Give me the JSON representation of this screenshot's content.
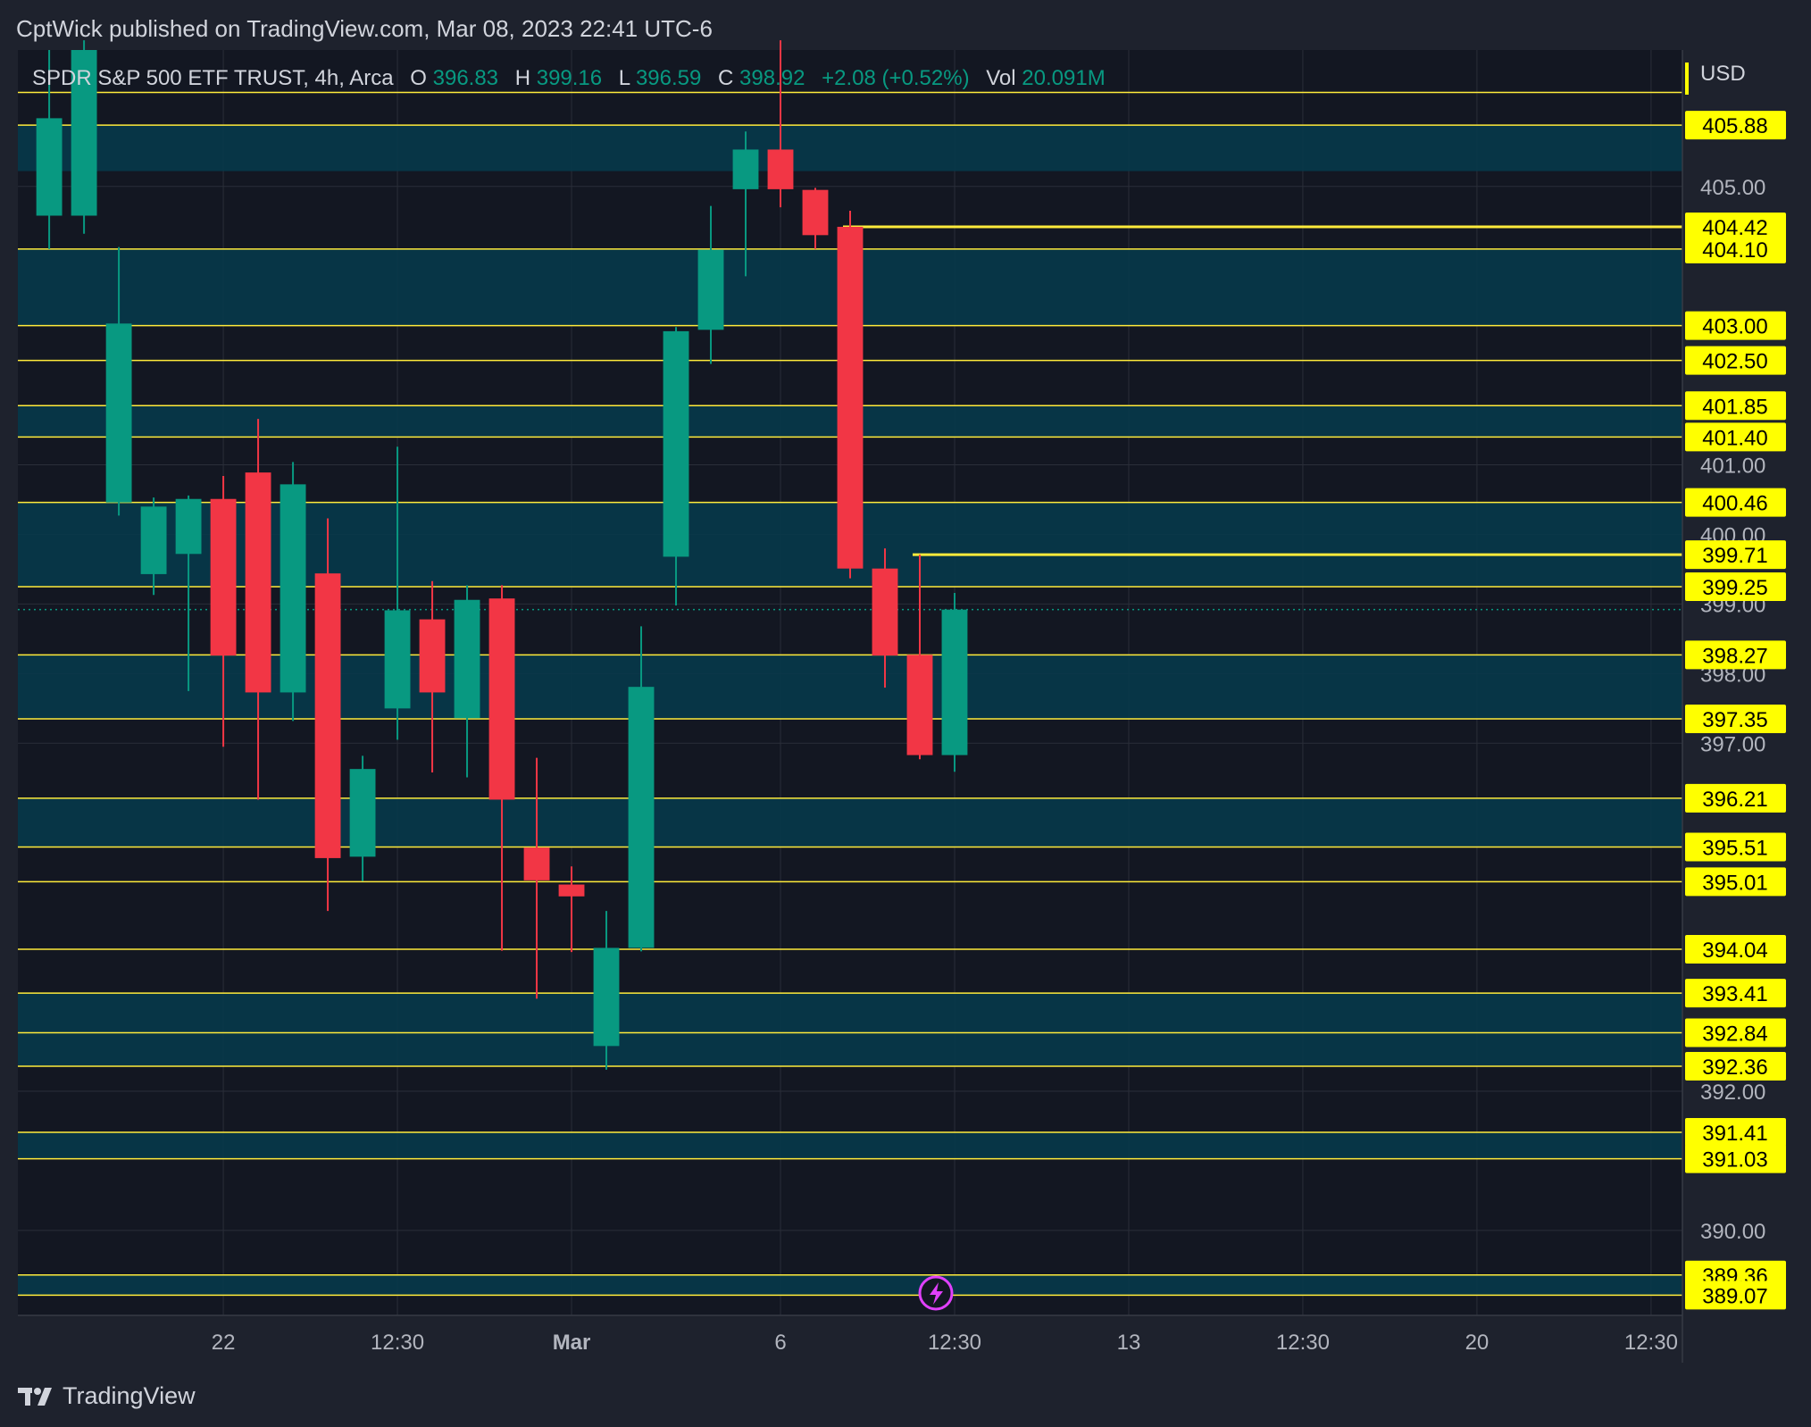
{
  "header": {
    "text": "CptWick published on TradingView.com, Mar 08, 2023 22:41 UTC-6"
  },
  "legend": {
    "symbol": "SPDR S&P 500 ETF TRUST, 4h, Arca",
    "o_label": "O",
    "o_value": "396.83",
    "h_label": "H",
    "h_value": "399.16",
    "l_label": "L",
    "l_value": "396.59",
    "c_label": "C",
    "c_value": "398.92",
    "change": "+2.08 (+0.52%)",
    "vol_label": "Vol",
    "vol_value": "20.091M"
  },
  "footer": {
    "brand": "TradingView"
  },
  "colors": {
    "background": "#131722",
    "frame": "#1e222d",
    "grid": "#2a2e39",
    "zone": "#07394a",
    "level_line": "#ffeb3b",
    "level_badge": "#ffff00",
    "up": "#089981",
    "down": "#f23645",
    "text": "#d1d4dc",
    "axis_text": "#b2b5be",
    "lightning": "#e040fb"
  },
  "chart_data": {
    "type": "candlestick",
    "title": "SPDR S&P 500 ETF TRUST, 4h, Arca",
    "currency": "USD",
    "ylim": [
      388.78,
      406.96
    ],
    "y_ticks": [
      "390.00",
      "392.00",
      "397.00",
      "398.00",
      "399.00",
      "400.00",
      "401.00",
      "405.00"
    ],
    "x_ticks": [
      {
        "label": "22",
        "index": 5
      },
      {
        "label": "12:30",
        "index": 10
      },
      {
        "label": "Mar",
        "index": 15
      },
      {
        "label": "6",
        "index": 21
      },
      {
        "label": "12:30",
        "index": 26
      },
      {
        "label": "13",
        "index": 31
      },
      {
        "label": "12:30",
        "index": 36
      },
      {
        "label": "20",
        "index": 41
      },
      {
        "label": "12:30",
        "index": 46
      }
    ],
    "x_index_range": [
      -0.9,
      46.9
    ],
    "candles": [
      {
        "o": 404.58,
        "h": 406.96,
        "l": 404.1,
        "c": 405.98
      },
      {
        "o": 404.58,
        "h": 407.1,
        "l": 404.32,
        "c": 406.96
      },
      {
        "o": 400.46,
        "h": 404.13,
        "l": 400.27,
        "c": 403.03
      },
      {
        "o": 399.43,
        "h": 400.53,
        "l": 399.13,
        "c": 400.4
      },
      {
        "o": 399.72,
        "h": 400.56,
        "l": 397.75,
        "c": 400.51
      },
      {
        "o": 400.51,
        "h": 400.84,
        "l": 396.95,
        "c": 398.26
      },
      {
        "o": 400.89,
        "h": 401.66,
        "l": 396.19,
        "c": 397.73
      },
      {
        "o": 397.73,
        "h": 401.04,
        "l": 397.32,
        "c": 400.72
      },
      {
        "o": 399.44,
        "h": 400.23,
        "l": 394.59,
        "c": 395.35
      },
      {
        "o": 395.37,
        "h": 396.82,
        "l": 395.02,
        "c": 396.63
      },
      {
        "o": 397.5,
        "h": 401.26,
        "l": 397.05,
        "c": 398.91
      },
      {
        "o": 398.78,
        "h": 399.33,
        "l": 396.58,
        "c": 397.73
      },
      {
        "o": 397.36,
        "h": 399.27,
        "l": 396.51,
        "c": 399.06
      },
      {
        "o": 399.08,
        "h": 399.27,
        "l": 394.02,
        "c": 396.19
      },
      {
        "o": 395.5,
        "h": 396.79,
        "l": 393.33,
        "c": 395.03
      },
      {
        "o": 394.97,
        "h": 395.23,
        "l": 394.0,
        "c": 394.8
      },
      {
        "o": 392.65,
        "h": 394.59,
        "l": 392.31,
        "c": 394.06
      },
      {
        "o": 394.06,
        "h": 398.68,
        "l": 394.01,
        "c": 397.81
      },
      {
        "o": 399.68,
        "h": 402.98,
        "l": 398.98,
        "c": 402.92
      },
      {
        "o": 402.94,
        "h": 404.72,
        "l": 402.45,
        "c": 404.09
      },
      {
        "o": 404.96,
        "h": 405.79,
        "l": 403.71,
        "c": 405.53
      },
      {
        "o": 405.53,
        "h": 407.1,
        "l": 404.7,
        "c": 404.96
      },
      {
        "o": 404.95,
        "h": 404.98,
        "l": 404.1,
        "c": 404.3
      },
      {
        "o": 404.42,
        "h": 404.65,
        "l": 399.37,
        "c": 399.51
      },
      {
        "o": 399.51,
        "h": 399.8,
        "l": 397.8,
        "c": 398.26
      },
      {
        "o": 398.27,
        "h": 399.71,
        "l": 396.77,
        "c": 396.83
      },
      {
        "o": 396.83,
        "h": 399.16,
        "l": 396.59,
        "c": 398.92
      }
    ],
    "last_price": 398.92,
    "levels": [
      "405.88",
      "404.42",
      "404.10",
      "403.00",
      "402.50",
      "401.85",
      "401.40",
      "400.46",
      "399.71",
      "399.25",
      "398.27",
      "397.35",
      "396.21",
      "395.51",
      "395.01",
      "394.04",
      "393.41",
      "392.84",
      "392.36",
      "391.41",
      "391.03",
      "389.36",
      "389.07"
    ],
    "partial_levels": [
      {
        "value": 404.42,
        "from_index": 23
      },
      {
        "value": 399.71,
        "from_index": 25
      }
    ],
    "zones": [
      [
        405.22,
        405.88
      ],
      [
        403.0,
        404.1
      ],
      [
        401.4,
        401.85
      ],
      [
        399.25,
        400.46
      ],
      [
        397.35,
        398.27
      ],
      [
        395.51,
        396.21
      ],
      [
        392.36,
        393.41
      ],
      [
        391.03,
        391.41
      ],
      [
        389.07,
        389.36
      ]
    ]
  }
}
